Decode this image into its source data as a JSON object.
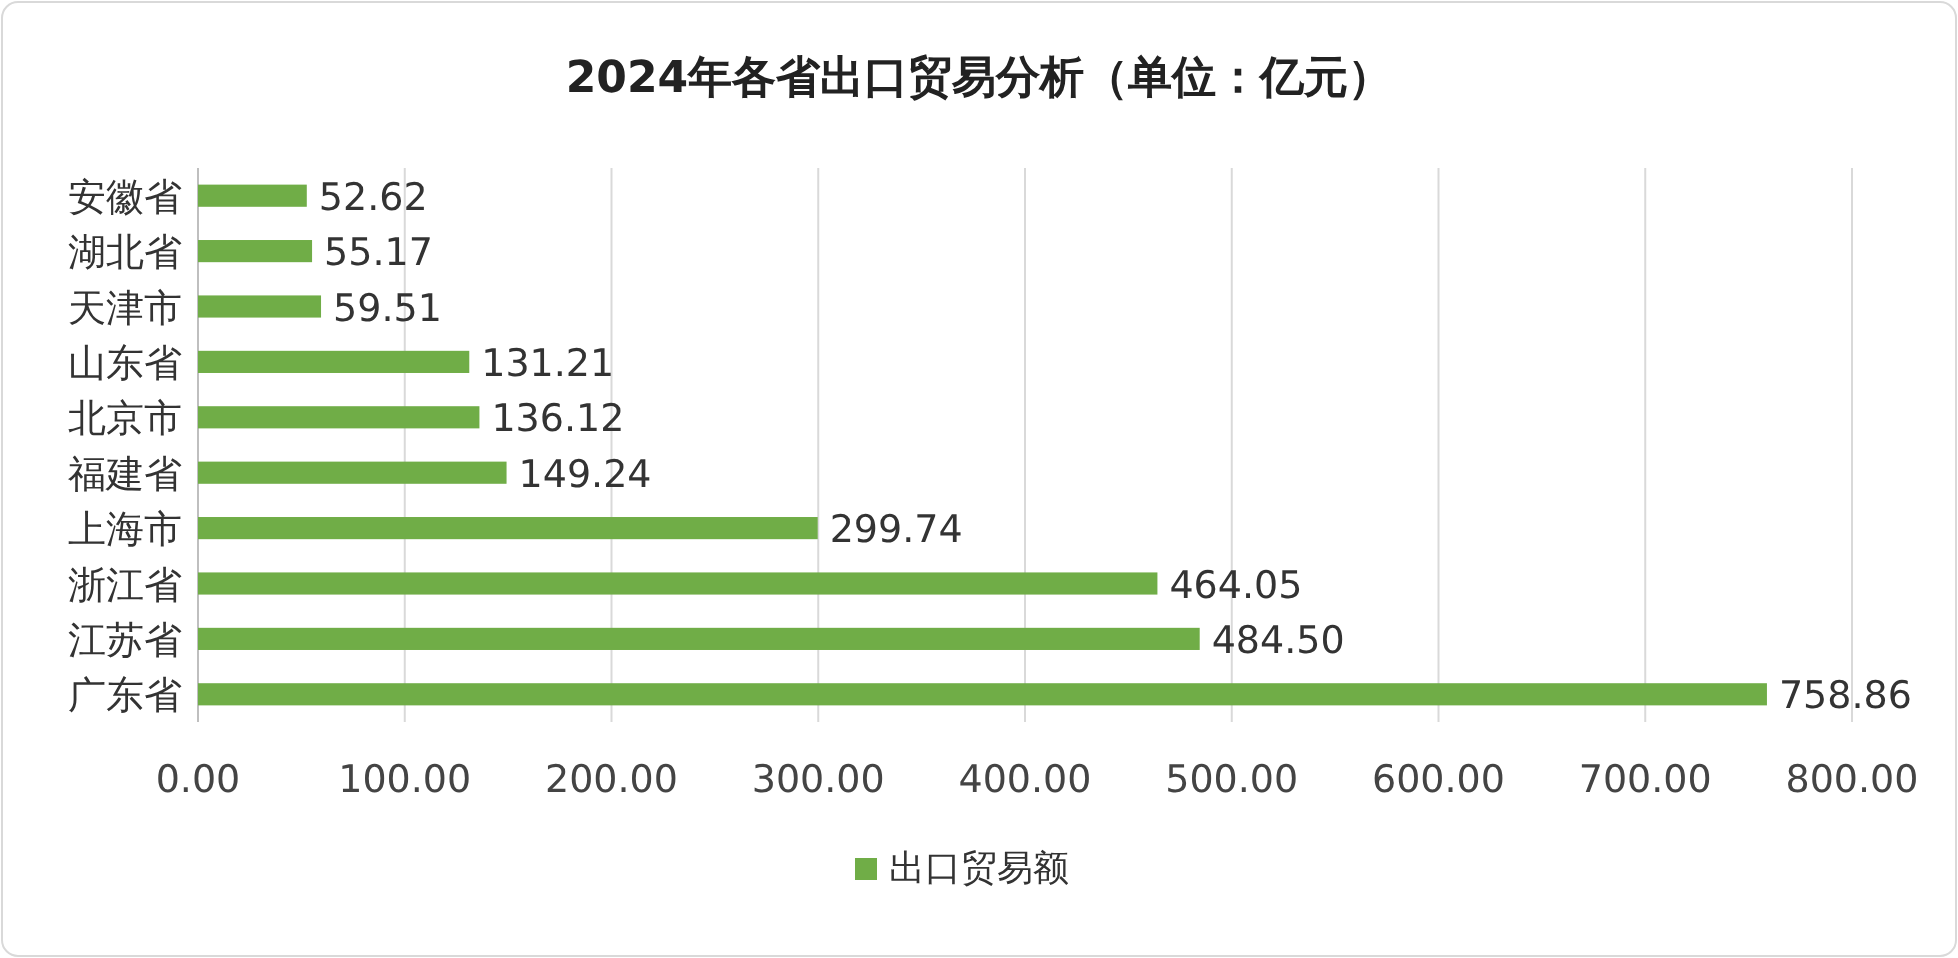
{
  "chart_data": {
    "type": "bar",
    "orientation": "horizontal",
    "title": "2024年各省出口贸易分析（单位：亿元）",
    "categories": [
      "安徽省",
      "湖北省",
      "天津市",
      "山东省",
      "北京市",
      "福建省",
      "上海市",
      "浙江省",
      "江苏省",
      "广东省"
    ],
    "series": [
      {
        "name": "出口贸易额",
        "color": "#70ad47",
        "values": [
          52.62,
          55.17,
          59.51,
          131.21,
          136.12,
          149.24,
          299.74,
          464.05,
          484.5,
          758.86
        ],
        "value_labels": [
          "52.62",
          "55.17",
          "59.51",
          "131.21",
          "136.12",
          "149.24",
          "299.74",
          "464.05",
          "484.50",
          "758.86"
        ]
      }
    ],
    "xlim": [
      0,
      800
    ],
    "xticks": [
      {
        "value": 0,
        "label": "0.00"
      },
      {
        "value": 100,
        "label": "100.00"
      },
      {
        "value": 200,
        "label": "200.00"
      },
      {
        "value": 300,
        "label": "300.00"
      },
      {
        "value": 400,
        "label": "400.00"
      },
      {
        "value": 500,
        "label": "500.00"
      },
      {
        "value": 600,
        "label": "600.00"
      },
      {
        "value": 700,
        "label": "700.00"
      },
      {
        "value": 800,
        "label": "800.00"
      }
    ],
    "grid": "x",
    "legend": "bottom"
  }
}
